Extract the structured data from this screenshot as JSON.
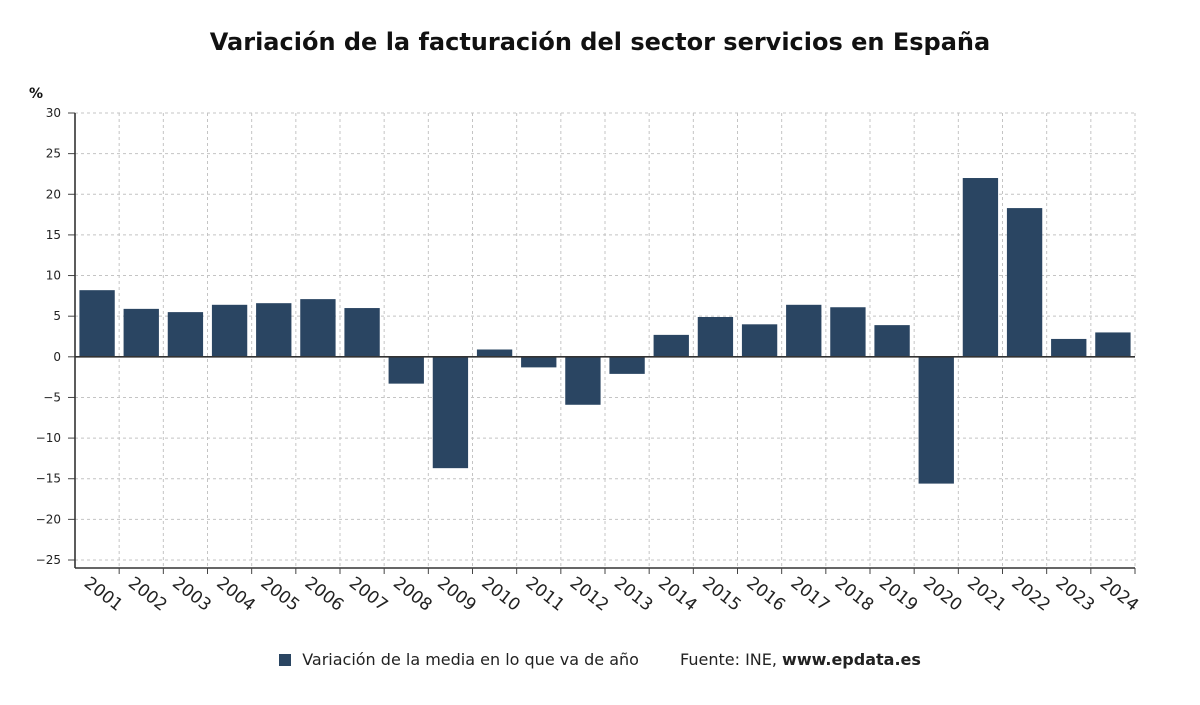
{
  "chart_data": {
    "type": "bar",
    "title": "Variación de la facturación del sector servicios en España",
    "ylabel": "%",
    "categories": [
      "2001",
      "2002",
      "2003",
      "2004",
      "2005",
      "2006",
      "2007",
      "2008",
      "2009",
      "2010",
      "2011",
      "2012",
      "2013",
      "2014",
      "2015",
      "2016",
      "2017",
      "2018",
      "2019",
      "2020",
      "2021",
      "2022",
      "2023",
      "2024"
    ],
    "series": [
      {
        "name": "Variación de la media en lo que va de año",
        "values": [
          8.2,
          5.9,
          5.5,
          6.4,
          6.6,
          7.1,
          6.0,
          -3.3,
          -13.7,
          0.9,
          -1.3,
          -5.9,
          -2.1,
          2.7,
          4.9,
          4.0,
          6.4,
          6.1,
          3.9,
          -15.6,
          22.0,
          18.3,
          2.2,
          3.0
        ]
      }
    ],
    "ylim": [
      -25,
      30
    ],
    "yticks": [
      30,
      25,
      20,
      15,
      10,
      5,
      0,
      -5,
      -10,
      -15,
      -20,
      -25
    ],
    "grid": true,
    "bar_color": "#2a4562",
    "legend_position": "bottom"
  },
  "footer": {
    "legend_label": "Variación de la media en lo que va de año",
    "source_prefix": "Fuente: INE,",
    "source_site": "www.epdata.es"
  }
}
